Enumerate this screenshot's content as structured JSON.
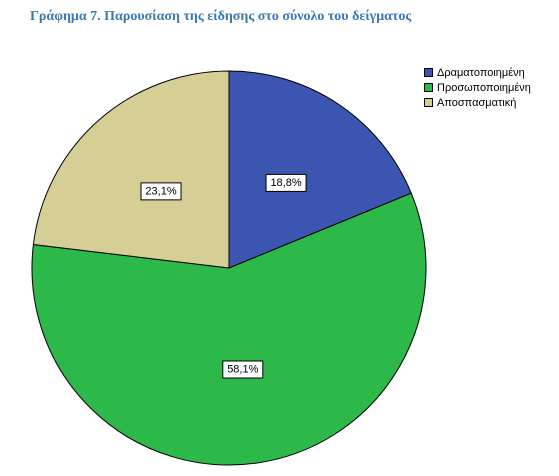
{
  "chart_data": {
    "type": "pie",
    "title": "Γράφημα 7. Παρουσίαση της είδησης στο σύνολο του δείγματος",
    "categories": [
      "Δραματοποιημένη",
      "Προσωποποιημένη",
      "Αποσπασματική"
    ],
    "values": [
      18.8,
      58.1,
      23.1
    ],
    "labels": [
      "18,8%",
      "58,1%",
      "23,1%"
    ],
    "colors": [
      "#3c55b0",
      "#2db84a",
      "#d5cf96"
    ],
    "legend_position": "top-right",
    "start_angle": "12 o'clock",
    "direction": "clockwise"
  }
}
